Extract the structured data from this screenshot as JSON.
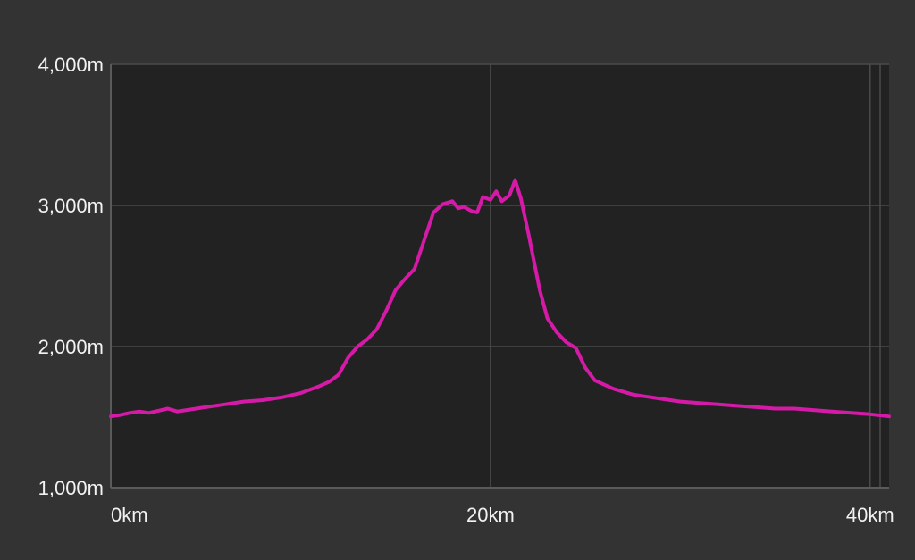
{
  "chart_data": {
    "type": "area",
    "title": "",
    "xlabel": "",
    "ylabel": "",
    "xlim": [
      0,
      41
    ],
    "ylim": [
      1000,
      4000
    ],
    "grid": true,
    "colors": {
      "line": "#d41aa6",
      "plot_background": "#222222",
      "page_background": "#333333",
      "grid": "#4a4a4a",
      "text": "#f2f2f2"
    },
    "y_ticks": [
      {
        "value": 1000,
        "label": "1,000m"
      },
      {
        "value": 2000,
        "label": "2,000m"
      },
      {
        "value": 3000,
        "label": "3,000m"
      },
      {
        "value": 4000,
        "label": "4,000m"
      }
    ],
    "x_ticks": [
      {
        "value": 0,
        "label": "0km"
      },
      {
        "value": 20,
        "label": "20km"
      },
      {
        "value": 40,
        "label": "40km"
      }
    ],
    "series": [
      {
        "x": [
          0,
          0.5,
          1,
          1.5,
          2,
          2.5,
          3,
          3.5,
          4,
          5,
          6,
          7,
          8,
          9,
          10,
          11,
          11.5,
          12,
          12.5,
          13,
          13.5,
          14,
          14.5,
          15,
          15.5,
          16,
          16.5,
          17,
          17.5,
          18,
          18.3,
          18.6,
          19,
          19.3,
          19.6,
          20,
          20.3,
          20.6,
          21,
          21.3,
          21.6,
          22,
          22.3,
          22.6,
          23,
          23.5,
          24,
          24.5,
          25,
          25.5,
          26,
          26.5,
          27,
          27.5,
          28,
          29,
          30,
          31,
          32,
          33,
          34,
          35,
          36,
          37,
          38,
          39,
          40,
          41
        ],
        "values": [
          1505,
          1515,
          1530,
          1540,
          1530,
          1545,
          1560,
          1540,
          1550,
          1570,
          1590,
          1610,
          1620,
          1640,
          1670,
          1720,
          1750,
          1800,
          1920,
          2000,
          2050,
          2120,
          2250,
          2400,
          2480,
          2550,
          2750,
          2950,
          3010,
          3030,
          2980,
          2990,
          2960,
          2950,
          3060,
          3040,
          3100,
          3030,
          3070,
          3180,
          3050,
          2800,
          2600,
          2400,
          2200,
          2100,
          2030,
          1990,
          1850,
          1760,
          1730,
          1700,
          1680,
          1660,
          1650,
          1630,
          1610,
          1600,
          1590,
          1580,
          1570,
          1560,
          1560,
          1550,
          1540,
          1530,
          1520,
          1505
        ]
      }
    ]
  }
}
